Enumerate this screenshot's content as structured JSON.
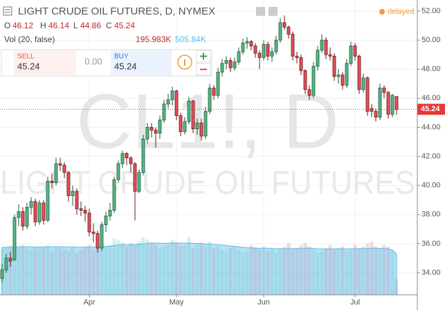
{
  "chart_data": {
    "type": "candlestick",
    "title": "LIGHT CRUDE OIL FUTURES, D, NYMEX",
    "status": "delayed",
    "watermark_symbol": "CL1!, D",
    "watermark_name": "LIGHT CRUDE OIL FUTURES",
    "ohlc_names": [
      "O",
      "H",
      "L",
      "C"
    ],
    "categories": [
      null,
      null,
      null,
      null,
      null,
      null,
      null,
      null,
      null,
      null,
      null,
      null,
      null,
      null,
      null,
      null,
      null,
      null,
      null,
      null,
      null,
      "Apr",
      null,
      null,
      null,
      null,
      null,
      null,
      null,
      null,
      null,
      null,
      null,
      null,
      null,
      null,
      null,
      null,
      null,
      null,
      null,
      null,
      "May",
      null,
      null,
      null,
      null,
      null,
      null,
      null,
      null,
      null,
      null,
      null,
      null,
      null,
      null,
      null,
      null,
      null,
      null,
      null,
      null,
      "Jun",
      null,
      null,
      null,
      null,
      null,
      null,
      null,
      null,
      null,
      null,
      null,
      null,
      null,
      null,
      null,
      null,
      null,
      null,
      null,
      null,
      null,
      "Jul",
      null,
      null,
      null,
      null,
      null,
      null,
      null,
      null,
      null,
      null
    ],
    "ohlc": [
      [
        33.6,
        34.6,
        33.3,
        34.2
      ],
      [
        34.2,
        35.3,
        34.0,
        35.0
      ],
      [
        35.0,
        35.4,
        34.4,
        34.8
      ],
      [
        34.9,
        38.0,
        34.8,
        37.8
      ],
      [
        37.8,
        38.7,
        37.2,
        38.2
      ],
      [
        38.2,
        38.5,
        36.9,
        37.2
      ],
      [
        37.2,
        38.8,
        37.0,
        38.5
      ],
      [
        38.5,
        39.2,
        38.0,
        38.9
      ],
      [
        38.9,
        39.1,
        37.2,
        37.5
      ],
      [
        37.5,
        39.0,
        37.3,
        38.8
      ],
      [
        38.8,
        39.0,
        37.3,
        37.6
      ],
      [
        37.6,
        40.6,
        37.5,
        40.3
      ],
      [
        40.3,
        40.8,
        39.8,
        40.2
      ],
      [
        40.2,
        41.9,
        40.0,
        41.5
      ],
      [
        41.5,
        41.9,
        41.0,
        41.4
      ],
      [
        41.4,
        41.6,
        40.5,
        40.9
      ],
      [
        40.9,
        41.0,
        38.9,
        39.3
      ],
      [
        39.3,
        40.0,
        38.6,
        39.6
      ],
      [
        39.6,
        39.8,
        38.0,
        38.4
      ],
      [
        38.4,
        38.9,
        37.9,
        38.3
      ],
      [
        38.3,
        38.6,
        37.5,
        38.1
      ],
      [
        38.1,
        38.4,
        36.5,
        36.8
      ],
      [
        36.8,
        37.4,
        36.1,
        36.7
      ],
      [
        36.7,
        36.9,
        35.4,
        35.7
      ],
      [
        35.7,
        37.5,
        35.5,
        37.3
      ],
      [
        37.3,
        38.2,
        36.8,
        37.9
      ],
      [
        37.9,
        38.8,
        37.6,
        38.3
      ],
      [
        38.3,
        40.6,
        38.1,
        40.4
      ],
      [
        40.4,
        41.7,
        40.2,
        41.5
      ],
      [
        41.5,
        42.4,
        41.2,
        42.2
      ],
      [
        42.2,
        42.3,
        41.4,
        41.9
      ],
      [
        41.9,
        42.0,
        40.9,
        41.5
      ],
      [
        41.5,
        41.6,
        37.6,
        39.6
      ],
      [
        39.6,
        41.1,
        39.5,
        40.9
      ],
      [
        40.9,
        43.5,
        40.7,
        43.2
      ],
      [
        43.2,
        44.3,
        42.9,
        44.0
      ],
      [
        44.0,
        44.3,
        43.3,
        43.8
      ],
      [
        43.8,
        44.0,
        42.6,
        43.6
      ],
      [
        43.6,
        44.8,
        43.2,
        44.5
      ],
      [
        44.5,
        45.9,
        44.3,
        45.6
      ],
      [
        45.6,
        46.3,
        45.3,
        45.9
      ],
      [
        45.9,
        46.8,
        45.5,
        46.5
      ],
      [
        46.5,
        46.6,
        44.5,
        44.8
      ],
      [
        44.8,
        45.0,
        43.4,
        43.7
      ],
      [
        43.7,
        44.7,
        43.5,
        44.4
      ],
      [
        44.4,
        46.1,
        44.2,
        45.8
      ],
      [
        45.8,
        45.9,
        43.6,
        43.9
      ],
      [
        43.9,
        44.6,
        43.5,
        44.3
      ],
      [
        44.3,
        44.6,
        43.1,
        43.4
      ],
      [
        43.4,
        45.4,
        43.2,
        45.1
      ],
      [
        45.1,
        47.0,
        44.9,
        46.7
      ],
      [
        46.7,
        46.9,
        45.9,
        46.2
      ],
      [
        46.2,
        48.1,
        46.0,
        47.8
      ],
      [
        47.8,
        48.7,
        47.5,
        48.4
      ],
      [
        48.4,
        48.9,
        48.0,
        48.6
      ],
      [
        48.6,
        48.8,
        47.8,
        48.1
      ],
      [
        48.1,
        48.8,
        47.9,
        48.5
      ],
      [
        48.5,
        49.5,
        48.3,
        49.2
      ],
      [
        49.2,
        50.1,
        49.0,
        49.8
      ],
      [
        49.8,
        50.2,
        49.4,
        49.9
      ],
      [
        49.9,
        50.0,
        49.3,
        49.6
      ],
      [
        49.6,
        49.8,
        48.8,
        49.1
      ],
      [
        49.1,
        49.3,
        48.0,
        48.8
      ],
      [
        48.8,
        50.0,
        48.6,
        49.7
      ],
      [
        49.7,
        49.9,
        48.6,
        48.9
      ],
      [
        48.9,
        49.5,
        48.5,
        49.2
      ],
      [
        49.2,
        50.3,
        49.0,
        50.0
      ],
      [
        50.0,
        51.5,
        49.8,
        51.2
      ],
      [
        51.2,
        51.7,
        50.7,
        50.9
      ],
      [
        50.9,
        51.0,
        50.1,
        50.4
      ],
      [
        50.4,
        50.6,
        48.6,
        48.9
      ],
      [
        48.9,
        49.2,
        48.4,
        48.8
      ],
      [
        48.8,
        49.0,
        47.6,
        47.9
      ],
      [
        47.9,
        48.0,
        46.3,
        46.6
      ],
      [
        46.6,
        46.9,
        45.9,
        46.2
      ],
      [
        46.2,
        48.5,
        46.0,
        48.2
      ],
      [
        48.2,
        49.6,
        47.9,
        49.3
      ],
      [
        49.3,
        50.4,
        49.1,
        50.0
      ],
      [
        50.0,
        50.2,
        48.7,
        49.0
      ],
      [
        49.0,
        49.5,
        48.6,
        48.9
      ],
      [
        48.9,
        49.1,
        47.2,
        47.5
      ],
      [
        47.5,
        48.0,
        47.0,
        47.6
      ],
      [
        47.6,
        47.8,
        46.6,
        46.9
      ],
      [
        46.9,
        48.7,
        46.7,
        48.4
      ],
      [
        48.4,
        49.9,
        48.2,
        49.6
      ],
      [
        49.6,
        49.8,
        48.6,
        48.9
      ],
      [
        48.9,
        49.0,
        46.3,
        46.6
      ],
      [
        46.6,
        47.7,
        46.4,
        47.4
      ],
      [
        47.4,
        47.5,
        44.8,
        45.1
      ],
      [
        45.3,
        45.6,
        44.7,
        45.1
      ],
      [
        45.1,
        45.3,
        44.4,
        44.7
      ],
      [
        44.7,
        47.0,
        44.5,
        46.7
      ],
      [
        46.7,
        46.9,
        46.0,
        46.4
      ],
      [
        46.4,
        46.5,
        44.6,
        44.9
      ],
      [
        44.9,
        46.3,
        44.7,
        46.2
      ],
      [
        46.12,
        46.14,
        44.86,
        45.24
      ]
    ],
    "up_color": "#53b987",
    "down_color": "#eb4d5c",
    "ylim": [
      32.48,
      52.76
    ],
    "yticks": [
      {
        "value": 34,
        "label": "34.00"
      },
      {
        "value": 36,
        "label": "36.00"
      },
      {
        "value": 38,
        "label": "38.00"
      },
      {
        "value": 40,
        "label": "40.00"
      },
      {
        "value": 42,
        "label": "42.00"
      },
      {
        "value": 44,
        "label": "44.00"
      },
      {
        "value": 46,
        "label": "46.00"
      },
      {
        "value": 48,
        "label": "48.00"
      },
      {
        "value": 50,
        "label": "50.00"
      },
      {
        "value": 52,
        "label": "52.00"
      }
    ],
    "grid": true,
    "last_price_color": "#e53935",
    "volume": {
      "name": "Vol (20, false)",
      "value_label": "195.983K",
      "label_color": "#c62828",
      "values": [
        560,
        590,
        610,
        640,
        600,
        620,
        580,
        560,
        600,
        570,
        590,
        620,
        540,
        600,
        580,
        560,
        540,
        600,
        520,
        560,
        600,
        620,
        560,
        590,
        640,
        600,
        620,
        700,
        680,
        650,
        600,
        640,
        620,
        670,
        720,
        690,
        650,
        620,
        580,
        600,
        620,
        680,
        640,
        600,
        610,
        720,
        580,
        620,
        650,
        600,
        660,
        580,
        600,
        560,
        540,
        580,
        600,
        560,
        520,
        540,
        620,
        580,
        560,
        600,
        540,
        560,
        520,
        580,
        600,
        640,
        560,
        580,
        620,
        640,
        600,
        560,
        520,
        540,
        580,
        620,
        560,
        580,
        600,
        540,
        560,
        620,
        580,
        600,
        640,
        660,
        600,
        580,
        620,
        600,
        560,
        195.983
      ]
    },
    "volume_ma": {
      "value_label": "505.84K",
      "color": "#5bbcec",
      "values": [
        590,
        590,
        592,
        594,
        596,
        596,
        596,
        595,
        594,
        594,
        594,
        596,
        596,
        598,
        598,
        596,
        594,
        594,
        592,
        590,
        592,
        594,
        592,
        594,
        600,
        602,
        604,
        612,
        618,
        622,
        622,
        624,
        624,
        628,
        634,
        640,
        642,
        642,
        640,
        640,
        640,
        644,
        644,
        642,
        640,
        644,
        640,
        636,
        636,
        630,
        630,
        626,
        622,
        618,
        612,
        606,
        602,
        596,
        590,
        584,
        584,
        582,
        578,
        580,
        578,
        576,
        572,
        572,
        572,
        576,
        574,
        574,
        576,
        580,
        580,
        576,
        572,
        570,
        568,
        570,
        570,
        570,
        572,
        570,
        570,
        572,
        574,
        576,
        578,
        580,
        580,
        578,
        576,
        572,
        556,
        505.84
      ]
    },
    "y2lim": [
      0,
      3660
    ],
    "trade": {
      "sell_label": "SELL",
      "sell_price": "45.24",
      "spread": "0.00",
      "buy_label": "BUY",
      "buy_price": "45.24"
    }
  }
}
